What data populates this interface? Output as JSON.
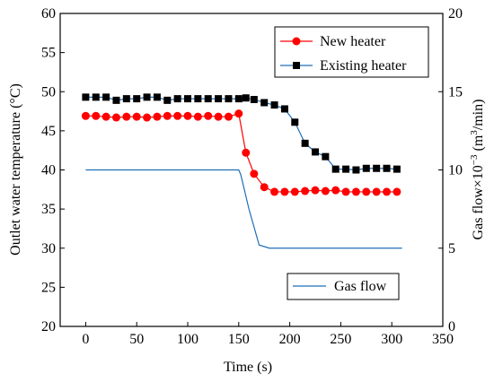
{
  "chart_data": {
    "type": "line",
    "xlabel": "Time (s)",
    "ylabel_left": "Outlet water temperature (°C)",
    "ylabel_right_main": "Gas flow×10",
    "ylabel_right_exp": "−3",
    "ylabel_right_unit1": " (m",
    "ylabel_right_unit_exp": "3",
    "ylabel_right_unit2": "/min)",
    "xlim": [
      -25,
      350
    ],
    "ylim_left": [
      20,
      60
    ],
    "ylim_right": [
      0,
      20
    ],
    "x_ticks": [
      "0",
      "50",
      "100",
      "150",
      "200",
      "250",
      "300",
      "350"
    ],
    "y_left_ticks": [
      "20",
      "25",
      "30",
      "35",
      "40",
      "45",
      "50",
      "55",
      "60"
    ],
    "y_right_ticks": [
      "0",
      "5",
      "10",
      "15",
      "20"
    ],
    "grid": false,
    "legend_top": {
      "placement": "top-right",
      "entries": [
        "New heater",
        "Existing heater"
      ]
    },
    "legend_bottom": {
      "placement": "bottom-right",
      "entries": [
        "Gas flow"
      ]
    },
    "colors": {
      "new_heater": "#ff0000",
      "existing_heater": "#000000",
      "connector": "#1f6fb5",
      "gas_flow": "#1f6fb5"
    },
    "series": [
      {
        "name": "New heater",
        "axis": "left",
        "marker": "circle",
        "x": [
          0,
          10,
          20,
          30,
          40,
          50,
          60,
          70,
          80,
          90,
          100,
          110,
          120,
          130,
          140,
          150,
          157,
          165,
          175,
          185,
          195,
          205,
          215,
          225,
          235,
          245,
          255,
          265,
          275,
          285,
          295,
          305
        ],
        "y": [
          46.9,
          46.9,
          46.8,
          46.7,
          46.8,
          46.8,
          46.7,
          46.8,
          46.9,
          46.9,
          46.9,
          46.8,
          46.9,
          46.8,
          46.8,
          47.2,
          42.2,
          39.5,
          37.8,
          37.2,
          37.2,
          37.2,
          37.3,
          37.4,
          37.3,
          37.4,
          37.2,
          37.2,
          37.2,
          37.2,
          37.2,
          37.2
        ]
      },
      {
        "name": "Existing heater",
        "axis": "left",
        "marker": "square",
        "x": [
          0,
          10,
          20,
          30,
          40,
          50,
          60,
          70,
          80,
          90,
          100,
          110,
          120,
          130,
          140,
          150,
          157,
          165,
          175,
          185,
          195,
          205,
          215,
          225,
          235,
          245,
          255,
          265,
          275,
          285,
          295,
          305
        ],
        "y": [
          49.3,
          49.3,
          49.3,
          48.9,
          49.1,
          49.1,
          49.3,
          49.3,
          48.9,
          49.1,
          49.1,
          49.1,
          49.1,
          49.1,
          49.1,
          49.1,
          49.2,
          49.0,
          48.6,
          48.3,
          47.8,
          46.1,
          43.4,
          42.3,
          41.7,
          40.1,
          40.1,
          40.0,
          40.2,
          40.2,
          40.2,
          40.1
        ]
      },
      {
        "name": "Gas flow",
        "axis": "right",
        "marker": "none",
        "x": [
          0,
          150,
          152,
          160,
          170,
          180,
          310
        ],
        "y": [
          10,
          10,
          9.7,
          7.5,
          5.2,
          5.0,
          5.0
        ]
      }
    ]
  }
}
